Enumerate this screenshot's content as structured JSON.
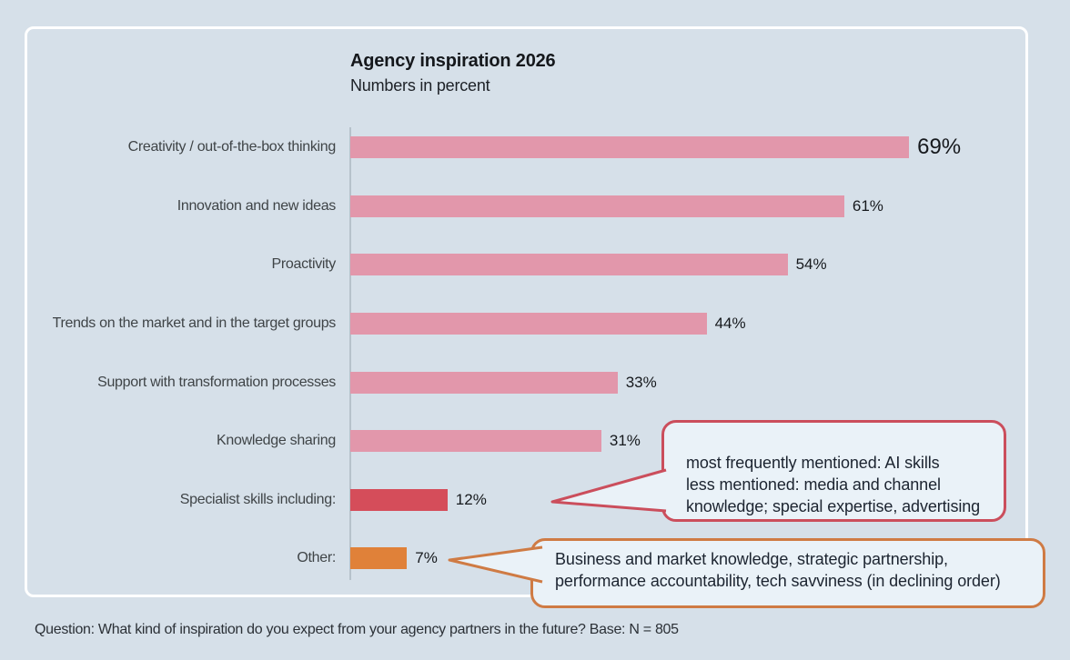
{
  "header": {
    "title": "Agency inspiration 2026",
    "subtitle": "Numbers in percent"
  },
  "chart_data": {
    "type": "bar",
    "orientation": "horizontal",
    "title": "Agency inspiration 2026",
    "subtitle": "Numbers in percent",
    "unit": "percent",
    "grid": false,
    "xlim": [
      0,
      69
    ],
    "categories": [
      "Creativity / out-of-the-box thinking",
      "Innovation and new ideas",
      "Proactivity",
      "Trends on the market and in the target groups",
      "Support with transformation processes",
      "Knowledge sharing",
      "Specialist skills including:",
      "Other:"
    ],
    "values": [
      69,
      61,
      54,
      44,
      33,
      31,
      12,
      7
    ],
    "value_labels": [
      "69%",
      "61%",
      "54%",
      "44%",
      "33%",
      "31%",
      "12%",
      "7%"
    ],
    "bar_colors": [
      "#e297ab",
      "#e297ab",
      "#e297ab",
      "#e297ab",
      "#e297ab",
      "#e297ab",
      "#d54d5a",
      "#e08139"
    ]
  },
  "callouts": [
    {
      "points_to": "Specialist skills including:",
      "text": "most frequently mentioned: AI skills\nless mentioned: media and channel knowledge; special expertise, advertising",
      "border_color": "#cb4e5c",
      "fill": "#eaf2f8"
    },
    {
      "points_to": "Other:",
      "text": "Business and market knowledge, strategic partnership, performance accountability, tech savviness (in declining order)",
      "border_color": "#cf7b44",
      "fill": "#eaf2f8"
    }
  ],
  "footer": {
    "question": "Question: What kind of inspiration do you expect from your agency partners in the future? Base: N = 805"
  },
  "colors": {
    "background": "#d6e0e9",
    "panel_border": "#ffffff",
    "axis_line": "#b6c2cb",
    "bar_pink": "#e297ab",
    "bar_red": "#d54d5a",
    "bar_orange": "#e08139"
  }
}
